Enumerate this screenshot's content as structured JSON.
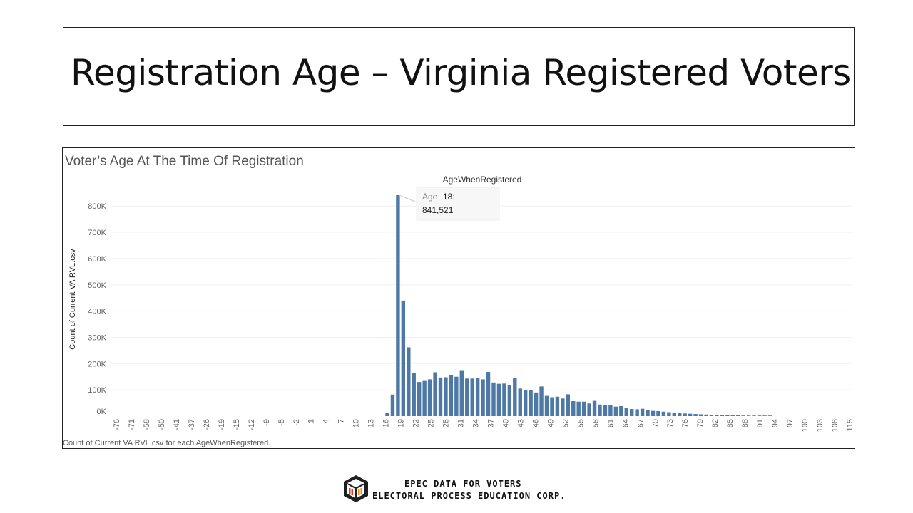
{
  "slide": {
    "title": "Registration Age – Virginia Registered Voters"
  },
  "brand": {
    "line1": "EPEC DATA FOR VOTERS",
    "line2": "ELECTORAL PROCESS EDUCATION CORP.",
    "logo_icon": "epec-hex-logo-icon",
    "colors": {
      "dark": "#1f1f1f",
      "red": "#e03a2f",
      "orange": "#f28a1e"
    }
  },
  "chart_data": {
    "type": "bar",
    "title": "Voter’s Age At The Time Of Registration",
    "column_header": "AgeWhenRegistered",
    "ylabel": "Count of Current VA RVL.csv",
    "footer": "Count of Current VA RVL.csv for each AgeWhenRegistered.",
    "ylim": [
      0,
      840000
    ],
    "y_ticks": [
      "0K",
      "100K",
      "200K",
      "300K",
      "400K",
      "500K",
      "600K",
      "700K",
      "800K"
    ],
    "x_tick_labels": [
      "-76",
      "-71",
      "-58",
      "-50",
      "-41",
      "-37",
      "-26",
      "-19",
      "-15",
      "-12",
      "-9",
      "-5",
      "-2",
      "1",
      "4",
      "7",
      "10",
      "13",
      "16",
      "19",
      "22",
      "25",
      "28",
      "31",
      "34",
      "37",
      "40",
      "43",
      "46",
      "49",
      "52",
      "55",
      "58",
      "61",
      "64",
      "67",
      "70",
      "73",
      "76",
      "79",
      "82",
      "85",
      "88",
      "91",
      "94",
      "97",
      "100",
      "103",
      "108",
      "115"
    ],
    "bar_color": "#4e79a7",
    "ages": [
      16,
      17,
      18,
      19,
      20,
      21,
      22,
      23,
      24,
      25,
      26,
      27,
      28,
      29,
      30,
      31,
      32,
      33,
      34,
      35,
      36,
      37,
      38,
      39,
      40,
      41,
      42,
      43,
      44,
      45,
      46,
      47,
      48,
      49,
      50,
      51,
      52,
      53,
      54,
      55,
      56,
      57,
      58,
      59,
      60,
      61,
      62,
      63,
      64,
      65,
      66,
      67,
      68,
      69,
      70,
      71,
      72,
      73,
      74,
      75,
      76,
      77,
      78,
      79,
      80,
      81,
      82,
      83,
      84,
      85,
      86,
      87,
      88
    ],
    "values": [
      12000,
      82000,
      841521,
      440000,
      262000,
      165000,
      130000,
      134000,
      140000,
      167000,
      147000,
      148000,
      155000,
      150000,
      175000,
      143000,
      143000,
      146000,
      140000,
      168000,
      128000,
      123000,
      124000,
      118000,
      145000,
      105000,
      100000,
      99000,
      90000,
      113000,
      77000,
      72000,
      74000,
      67000,
      83000,
      57000,
      55000,
      55000,
      48000,
      58000,
      44000,
      42000,
      42000,
      36000,
      38000,
      30000,
      27000,
      26000,
      28000,
      22000,
      20000,
      19000,
      17000,
      15000,
      13000,
      11000,
      10000,
      9000,
      8000,
      7000,
      6000,
      5000,
      4500,
      4000,
      3500,
      3000,
      2600,
      2200,
      1800,
      1500,
      1300,
      1100,
      900
    ],
    "tooltip": {
      "label": "Age",
      "age": "18:",
      "value": "841,521"
    }
  }
}
